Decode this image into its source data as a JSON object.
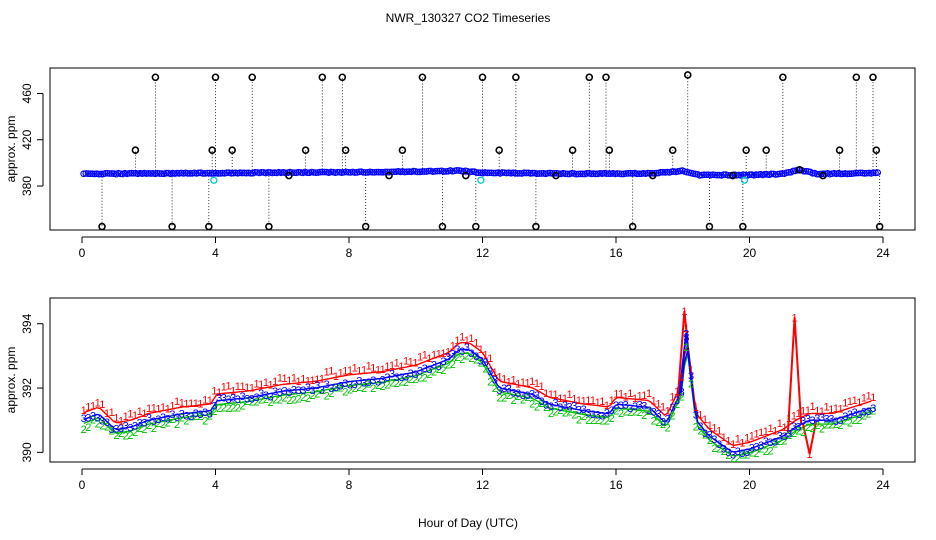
{
  "title": "NWR_130327  CO2 Timeseries",
  "xlabel": "Hour of Day (UTC)",
  "colors": {
    "raw": "#000000",
    "series1": "#ff0000",
    "series2": "#00c000",
    "series3": "#0000ff",
    "flag": "#00cccc"
  },
  "chart_data": [
    {
      "type": "scatter",
      "panel": "top",
      "ylabel": "approx. ppm",
      "xlim": [
        0,
        24
      ],
      "ylim": [
        342,
        482
      ],
      "xticks": [
        0,
        4,
        8,
        12,
        16,
        20,
        24
      ],
      "yticks": [
        380,
        420,
        460
      ],
      "baseline": {
        "x": [
          0,
          2,
          4,
          6,
          8,
          10,
          11.3,
          12,
          13,
          15,
          17,
          18,
          18.5,
          20,
          21,
          21.5,
          22,
          24
        ],
        "y": [
          390.5,
          390.8,
          391.2,
          391.6,
          392,
          392.5,
          393.2,
          391.5,
          391.2,
          390.6,
          390.8,
          393,
          389.5,
          389.5,
          390.5,
          394,
          390.5,
          391.3
        ]
      },
      "spike_times": [
        0.6,
        1.6,
        2.2,
        2.7,
        3.8,
        3.9,
        4.0,
        4.5,
        5.1,
        5.6,
        6.2,
        6.7,
        7.2,
        7.8,
        7.9,
        8.5,
        9.2,
        9.6,
        10.2,
        10.8,
        11.5,
        11.8,
        12.0,
        12.5,
        13.0,
        13.6,
        14.2,
        14.7,
        15.2,
        15.7,
        15.8,
        16.5,
        17.1,
        17.7,
        18.15,
        18.8,
        19.5,
        19.8,
        19.9,
        20.5,
        21.0,
        21.5,
        22.2,
        22.7,
        23.2,
        23.7,
        23.8,
        23.9
      ],
      "spike_values": [
        345,
        411,
        474,
        345,
        345,
        411,
        474,
        411,
        474,
        345,
        389,
        411,
        474,
        474,
        411,
        345,
        389,
        411,
        474,
        345,
        389,
        345,
        474,
        411,
        474,
        345,
        389,
        411,
        474,
        474,
        411,
        345,
        389,
        411,
        476,
        345,
        389,
        345,
        411,
        411,
        474,
        394,
        389,
        411,
        474,
        474,
        411,
        345
      ],
      "cyan_points_x": [
        3.95,
        11.95,
        19.85
      ],
      "cyan_points_y": [
        385,
        385,
        385
      ]
    },
    {
      "type": "scatter",
      "panel": "bottom",
      "ylabel": "approx. ppm",
      "xlim": [
        0,
        24
      ],
      "ylim": [
        389.7,
        394.8
      ],
      "xticks": [
        0,
        4,
        8,
        12,
        16,
        20,
        24
      ],
      "yticks": [
        390,
        392,
        394
      ],
      "series": [
        {
          "name": "1",
          "color": "#ff0000",
          "offset": 0.35
        },
        {
          "name": "2",
          "color": "#00c000",
          "offset": -0.2
        },
        {
          "name": "3",
          "color": "#0000ff",
          "offset": 0
        }
      ],
      "x": [
        0,
        0.5,
        1,
        1.5,
        2,
        3,
        3.9,
        4,
        5,
        6,
        7,
        8,
        9,
        10,
        11,
        11.3,
        11.6,
        12,
        12.5,
        13,
        13.5,
        14,
        15,
        15.8,
        16,
        17,
        17.5,
        18,
        18.1,
        18.4,
        18.8,
        19.5,
        20,
        21,
        21.4,
        21.8,
        22.5,
        23.7
      ],
      "y": [
        391,
        391.2,
        390.7,
        390.8,
        391,
        391.2,
        391.3,
        391.6,
        391.7,
        391.9,
        392,
        392.2,
        392.3,
        392.5,
        392.9,
        393.2,
        393.2,
        392.9,
        392,
        391.9,
        391.8,
        391.5,
        391.3,
        391.2,
        391.5,
        391.4,
        390.9,
        392,
        393.6,
        391,
        390.5,
        390,
        390.1,
        390.5,
        390.8,
        391,
        391,
        391.4
      ],
      "spikes": [
        {
          "x": 18.05,
          "y": 394.4,
          "series": "1"
        },
        {
          "x": 18.1,
          "y": 393.7,
          "series": "3"
        },
        {
          "x": 21.35,
          "y": 394.2,
          "series": "1"
        },
        {
          "x": 21.8,
          "y": 389.95,
          "series": "1"
        }
      ]
    }
  ]
}
